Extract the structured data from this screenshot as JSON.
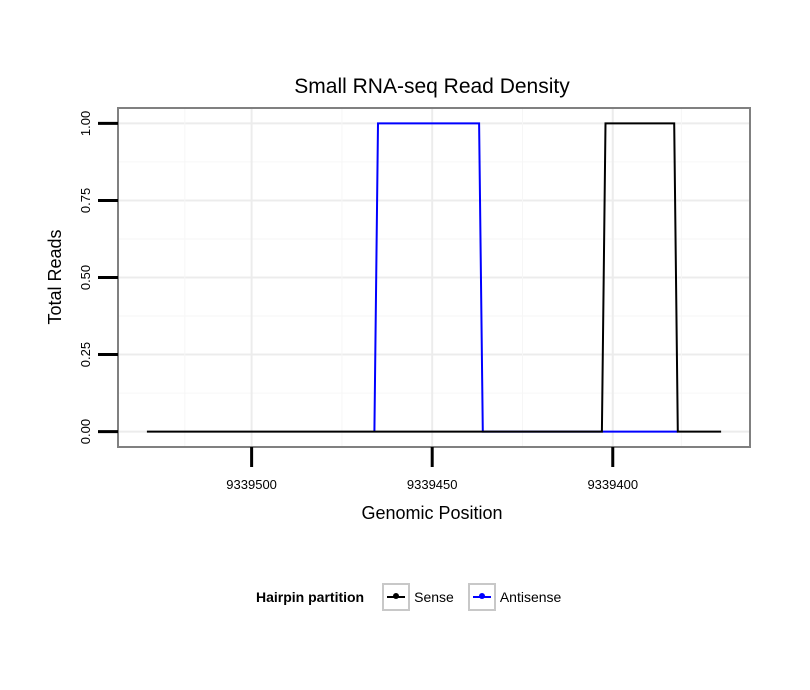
{
  "chart_data": {
    "type": "line",
    "title": "Small RNA-seq Read Density",
    "xlabel": "Genomic Position",
    "ylabel": "Total Reads",
    "x_reversed": true,
    "xlim": [
      9339537,
      9339362
    ],
    "ylim": [
      -0.05,
      1.05
    ],
    "x_ticks": [
      9339500,
      9339450,
      9339400
    ],
    "x_tick_labels": [
      "9339500",
      "9339450",
      "9339400"
    ],
    "y_ticks": [
      0,
      0.25,
      0.5,
      0.75,
      1
    ],
    "y_tick_labels": [
      "0.00",
      "0.25",
      "0.50",
      "0.75",
      "1.00"
    ],
    "grid": true,
    "legend_position": "bottom",
    "series": [
      {
        "name": "Sense",
        "color": "#000000",
        "x": [
          9339529,
          9339403,
          9339402,
          9339383,
          9339382,
          9339370
        ],
        "y": [
          0,
          0,
          1,
          1,
          0,
          0
        ]
      },
      {
        "name": "Antisense",
        "color": "#0000ff",
        "x": [
          9339466,
          9339465,
          9339437,
          9339436,
          9339403,
          9339382
        ],
        "y": [
          0,
          1,
          1,
          0,
          0,
          0
        ]
      }
    ]
  },
  "legend": {
    "title": "Hairpin partition",
    "items": [
      {
        "label": "Sense",
        "color": "#000000"
      },
      {
        "label": "Antisense",
        "color": "#0000ff"
      }
    ]
  }
}
